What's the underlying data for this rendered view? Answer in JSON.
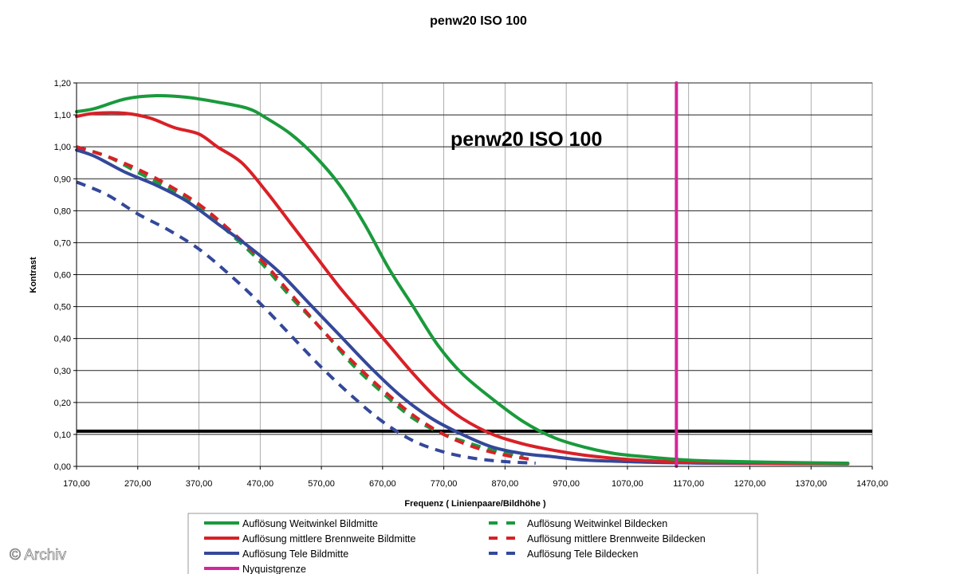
{
  "chart_data": {
    "type": "line",
    "title": "penw20 ISO 100",
    "inner_title": "penw20 ISO 100",
    "xlabel": "Frequenz ( Linienpaare/Bildhöhe )",
    "ylabel": "Kontrast",
    "xlim": [
      170,
      1470
    ],
    "ylim": [
      0,
      1.2
    ],
    "x_ticks": [
      "170,00",
      "270,00",
      "370,00",
      "470,00",
      "570,00",
      "670,00",
      "770,00",
      "870,00",
      "970,00",
      "1070,00",
      "1170,00",
      "1270,00",
      "1370,00",
      "1470,00"
    ],
    "y_ticks": [
      "0,00",
      "0,10",
      "0,20",
      "0,30",
      "0,40",
      "0,50",
      "0,60",
      "0,70",
      "0,80",
      "0,90",
      "1,00",
      "1,10",
      "1,20"
    ],
    "grid": "horizontal and vertical",
    "series": [
      {
        "name": "Auflösung Weitwinkel Bildmitte",
        "color": "#1a9a3c",
        "dash": "solid",
        "x": [
          170,
          200,
          250,
          300,
          350,
          400,
          450,
          480,
          520,
          560,
          600,
          640,
          680,
          720,
          760,
          800,
          850,
          900,
          950,
          1000,
          1050,
          1100,
          1150,
          1200,
          1300,
          1430
        ],
        "y": [
          1.11,
          1.12,
          1.15,
          1.16,
          1.155,
          1.14,
          1.12,
          1.09,
          1.04,
          0.97,
          0.88,
          0.76,
          0.62,
          0.5,
          0.38,
          0.29,
          0.21,
          0.14,
          0.09,
          0.06,
          0.04,
          0.03,
          0.022,
          0.017,
          0.013,
          0.01
        ]
      },
      {
        "name": "Auflösung mittlere Brennweite Bildmitte",
        "color": "#d92027",
        "dash": "solid",
        "x": [
          170,
          200,
          250,
          290,
          330,
          370,
          400,
          440,
          480,
          520,
          560,
          600,
          640,
          680,
          720,
          760,
          800,
          850,
          900,
          950,
          1000,
          1050,
          1100,
          1150,
          1200,
          1300,
          1430
        ],
        "y": [
          1.095,
          1.105,
          1.105,
          1.09,
          1.06,
          1.04,
          1.0,
          0.95,
          0.86,
          0.76,
          0.66,
          0.56,
          0.47,
          0.38,
          0.29,
          0.21,
          0.15,
          0.1,
          0.07,
          0.05,
          0.035,
          0.025,
          0.018,
          0.014,
          0.012,
          0.01,
          0.008
        ]
      },
      {
        "name": "Auflösung Tele Bildmitte",
        "color": "#34489a",
        "dash": "solid",
        "x": [
          170,
          200,
          250,
          300,
          350,
          400,
          450,
          500,
          550,
          600,
          650,
          700,
          750,
          800,
          850,
          900,
          950,
          1000,
          1100,
          1200,
          1300,
          1430
        ],
        "y": [
          0.99,
          0.97,
          0.92,
          0.88,
          0.83,
          0.76,
          0.69,
          0.61,
          0.51,
          0.41,
          0.31,
          0.22,
          0.15,
          0.1,
          0.06,
          0.04,
          0.03,
          0.02,
          0.013,
          0.01,
          0.009,
          0.008
        ]
      },
      {
        "name": "Nyquistgrenze",
        "color": "#d6269a",
        "dash": "solid",
        "x": [
          1150,
          1150
        ],
        "y": [
          0,
          1.2
        ]
      },
      {
        "name": "Auflösung Weitwinkel Bildecken",
        "color": "#1a9a3c",
        "dash": "dashed",
        "x": [
          170,
          220,
          270,
          320,
          370,
          420,
          470,
          520,
          570,
          620,
          670,
          720,
          770,
          800,
          850,
          900
        ],
        "y": [
          1.0,
          0.97,
          0.92,
          0.87,
          0.81,
          0.73,
          0.64,
          0.53,
          0.43,
          0.32,
          0.23,
          0.15,
          0.1,
          0.08,
          0.05,
          0.03
        ]
      },
      {
        "name": "Auflösung mittlere Brennweite Bildecken",
        "color": "#d92027",
        "dash": "dashed",
        "x": [
          170,
          220,
          270,
          320,
          370,
          420,
          470,
          520,
          570,
          620,
          670,
          720,
          770,
          820,
          870,
          920
        ],
        "y": [
          1.0,
          0.97,
          0.93,
          0.88,
          0.82,
          0.74,
          0.65,
          0.54,
          0.43,
          0.33,
          0.24,
          0.16,
          0.1,
          0.06,
          0.035,
          0.02
        ]
      },
      {
        "name": "Auflösung Tele Bildecken",
        "color": "#34489a",
        "dash": "dashed",
        "x": [
          170,
          220,
          270,
          320,
          370,
          420,
          470,
          520,
          570,
          620,
          670,
          720,
          770,
          820,
          870,
          920
        ],
        "y": [
          0.89,
          0.85,
          0.79,
          0.74,
          0.68,
          0.6,
          0.51,
          0.41,
          0.31,
          0.22,
          0.14,
          0.08,
          0.045,
          0.025,
          0.015,
          0.01
        ]
      }
    ],
    "threshold_line": {
      "y": 0.11,
      "color": "#000000"
    },
    "legend": {
      "placement": "bottom",
      "entries": [
        "Auflösung Weitwinkel Bildmitte",
        "Auflösung Weitwinkel Bildecken",
        "Auflösung mittlere Brennweite Bildmitte",
        "Auflösung mittlere Brennweite Bildecken",
        "Auflösung Tele Bildmitte",
        "Auflösung Tele Bildecken",
        "Nyquistgrenze"
      ]
    }
  },
  "watermark": "© Archiv"
}
